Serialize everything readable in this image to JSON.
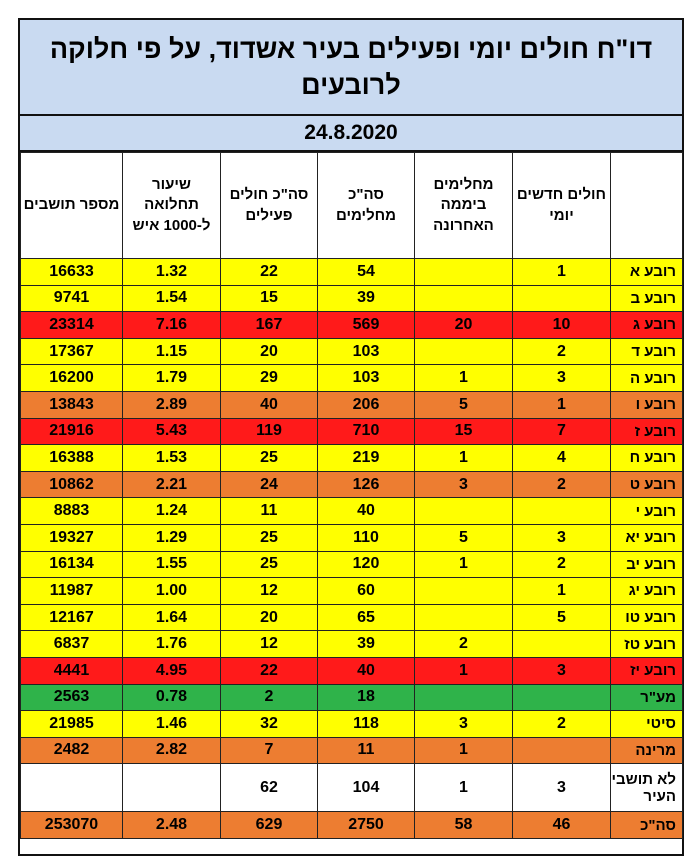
{
  "title": "דו\"ח חולים יומי ופעילים בעיר אשדוד, על פי חלוקה לרובעים",
  "date": "24.8.2020",
  "columns": [
    "",
    "חולים חדשים יומי",
    "מחלימים ביממה האחרונה",
    "סה\"כ מחלימים",
    "סה\"כ חולים פעילים",
    "שיעור תחלואה ל-1000 איש",
    "מספר תושבים"
  ],
  "colors": {
    "yellow": "#ffff00",
    "red": "#ff1a1a",
    "orange": "#ed7d31",
    "green": "#2fb34a",
    "header": "#c9daf1"
  },
  "rows": [
    {
      "color": "yellow",
      "cells": [
        "רובע א",
        "1",
        "",
        "54",
        "22",
        "1.32",
        "16633"
      ]
    },
    {
      "color": "yellow",
      "cells": [
        "רובע ב",
        "",
        "",
        "39",
        "15",
        "1.54",
        "9741"
      ]
    },
    {
      "color": "red",
      "cells": [
        "רובע ג",
        "10",
        "20",
        "569",
        "167",
        "7.16",
        "23314"
      ]
    },
    {
      "color": "yellow",
      "cells": [
        "רובע ד",
        "2",
        "",
        "103",
        "20",
        "1.15",
        "17367"
      ]
    },
    {
      "color": "yellow",
      "cells": [
        "רובע ה",
        "3",
        "1",
        "103",
        "29",
        "1.79",
        "16200"
      ]
    },
    {
      "color": "orange",
      "cells": [
        "רובע ו",
        "1",
        "5",
        "206",
        "40",
        "2.89",
        "13843"
      ]
    },
    {
      "color": "red",
      "cells": [
        "רובע ז",
        "7",
        "15",
        "710",
        "119",
        "5.43",
        "21916"
      ]
    },
    {
      "color": "yellow",
      "cells": [
        "רובע ח",
        "4",
        "1",
        "219",
        "25",
        "1.53",
        "16388"
      ]
    },
    {
      "color": "orange",
      "cells": [
        "רובע ט",
        "2",
        "3",
        "126",
        "24",
        "2.21",
        "10862"
      ]
    },
    {
      "color": "yellow",
      "cells": [
        "רובע י",
        "",
        "",
        "40",
        "11",
        "1.24",
        "8883"
      ]
    },
    {
      "color": "yellow",
      "cells": [
        "רובע יא",
        "3",
        "5",
        "110",
        "25",
        "1.29",
        "19327"
      ]
    },
    {
      "color": "yellow",
      "cells": [
        "רובע יב",
        "2",
        "1",
        "120",
        "25",
        "1.55",
        "16134"
      ]
    },
    {
      "color": "yellow",
      "cells": [
        "רובע יג",
        "1",
        "",
        "60",
        "12",
        "1.00",
        "11987"
      ]
    },
    {
      "color": "yellow",
      "cells": [
        "רובע טו",
        "5",
        "",
        "65",
        "20",
        "1.64",
        "12167"
      ]
    },
    {
      "color": "yellow",
      "cells": [
        "רובע טז",
        "",
        "2",
        "39",
        "12",
        "1.76",
        "6837"
      ]
    },
    {
      "color": "red",
      "cells": [
        "רובע יז",
        "3",
        "1",
        "40",
        "22",
        "4.95",
        "4441"
      ]
    },
    {
      "color": "green",
      "cells": [
        "מע\"ר",
        "",
        "",
        "18",
        "2",
        "0.78",
        "2563"
      ]
    },
    {
      "color": "yellow",
      "cells": [
        "סיטי",
        "2",
        "3",
        "118",
        "32",
        "1.46",
        "21985"
      ]
    },
    {
      "color": "orange",
      "cells": [
        "מרינה",
        "",
        "1",
        "11",
        "7",
        "2.82",
        "2482"
      ]
    },
    {
      "color": "white",
      "tall": true,
      "cells": [
        "לא תושבי העיר",
        "3",
        "1",
        "104",
        "62",
        "",
        ""
      ]
    },
    {
      "color": "orange",
      "cells": [
        "סה\"כ",
        "46",
        "58",
        "2750",
        "629",
        "2.48",
        "253070"
      ]
    }
  ]
}
